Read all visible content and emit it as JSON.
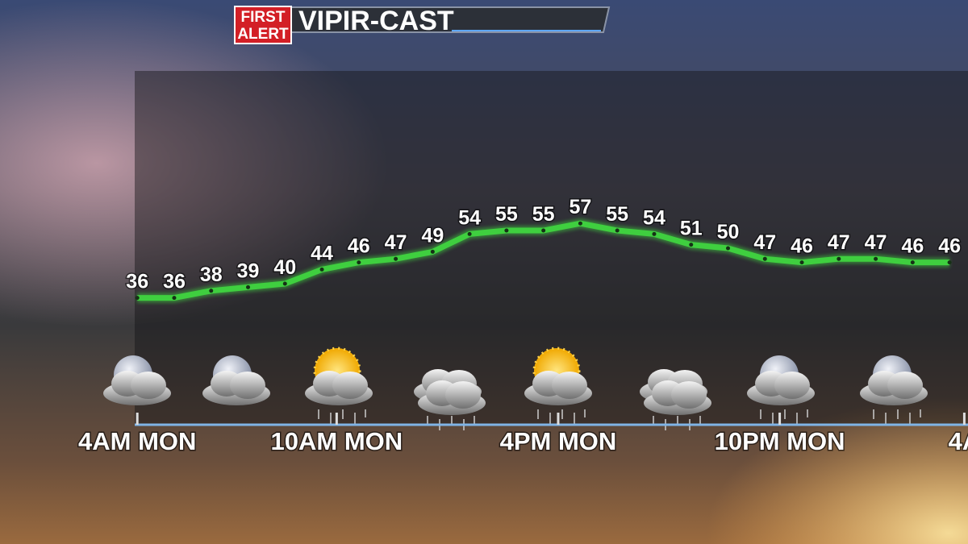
{
  "header": {
    "badge_line1": "FIRST",
    "badge_line2": "ALERT",
    "title": "VIPIR-CAST"
  },
  "chart_data": {
    "type": "line",
    "x": [
      0,
      1,
      2,
      3,
      4,
      5,
      6,
      7,
      8,
      9,
      10,
      11,
      12,
      13,
      14,
      15,
      16,
      17,
      18,
      19,
      20,
      21,
      22
    ],
    "series": [
      {
        "color": "#3fcf3f",
        "values": [
          36,
          36,
          38,
          39,
          40,
          44,
          46,
          47,
          49,
          54,
          55,
          55,
          57,
          55,
          54,
          51,
          50,
          47,
          46,
          47,
          47,
          46,
          46
        ]
      }
    ],
    "xlim": [
      -0.07,
      22.5
    ],
    "xticks": [
      {
        "value": 0,
        "label": "4AM MON"
      },
      {
        "value": 5.4,
        "label": "10AM MON"
      },
      {
        "value": 11.4,
        "label": "4PM MON"
      },
      {
        "value": 17.4,
        "label": "10PM MON"
      },
      {
        "value": 22.4,
        "label": "4A"
      }
    ],
    "ylim": [
      0,
      100
    ]
  }
}
